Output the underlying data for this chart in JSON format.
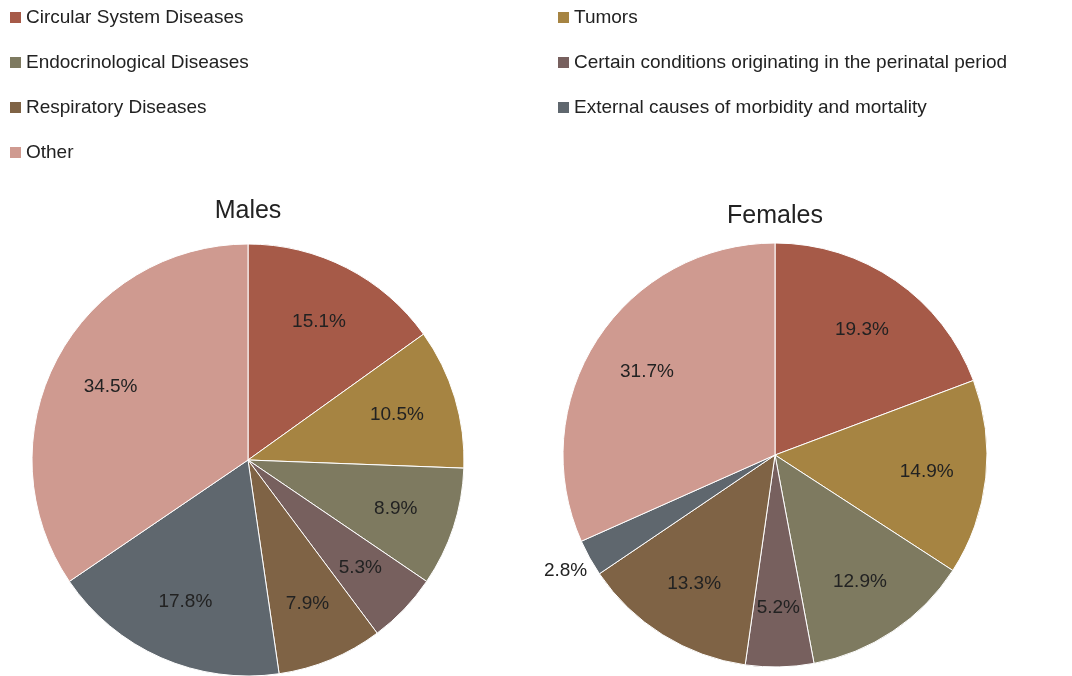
{
  "chart_data": [
    {
      "type": "pie",
      "title": "Males",
      "legend": "top",
      "categories": [
        "Circular System Diseases",
        "Tumors",
        "Endocrinological Diseases",
        "Certain conditions originating in the perinatal period",
        "Respiratory Diseases",
        "External causes of morbidity and mortality",
        "Other"
      ],
      "values": [
        15.1,
        10.5,
        8.9,
        5.3,
        7.9,
        17.8,
        34.5
      ],
      "value_labels": [
        "15.1%",
        "10.5%",
        "8.9%",
        "5.3%",
        "7.9%",
        "17.8%",
        "34.5%"
      ],
      "colors": [
        "#a65a48",
        "#a68442",
        "#7e7a60",
        "#77605e",
        "#7f6345",
        "#5f676e",
        "#cf9a90"
      ]
    },
    {
      "type": "pie",
      "title": "Females",
      "categories": [
        null,
        null,
        null,
        null,
        null,
        null,
        null
      ],
      "values": [
        19.3,
        14.9,
        12.9,
        5.2,
        13.3,
        2.8,
        31.7
      ],
      "value_labels": [
        "19.3%",
        "14.9%",
        "12.9%",
        "5.2%",
        "13.3%",
        "2.8%",
        "31.7%"
      ],
      "colors": [
        "#a65a48",
        "#a68442",
        "#7e7a60",
        "#77605e",
        "#7f6345",
        "#5f676e",
        "#cf9a90"
      ]
    }
  ]
}
